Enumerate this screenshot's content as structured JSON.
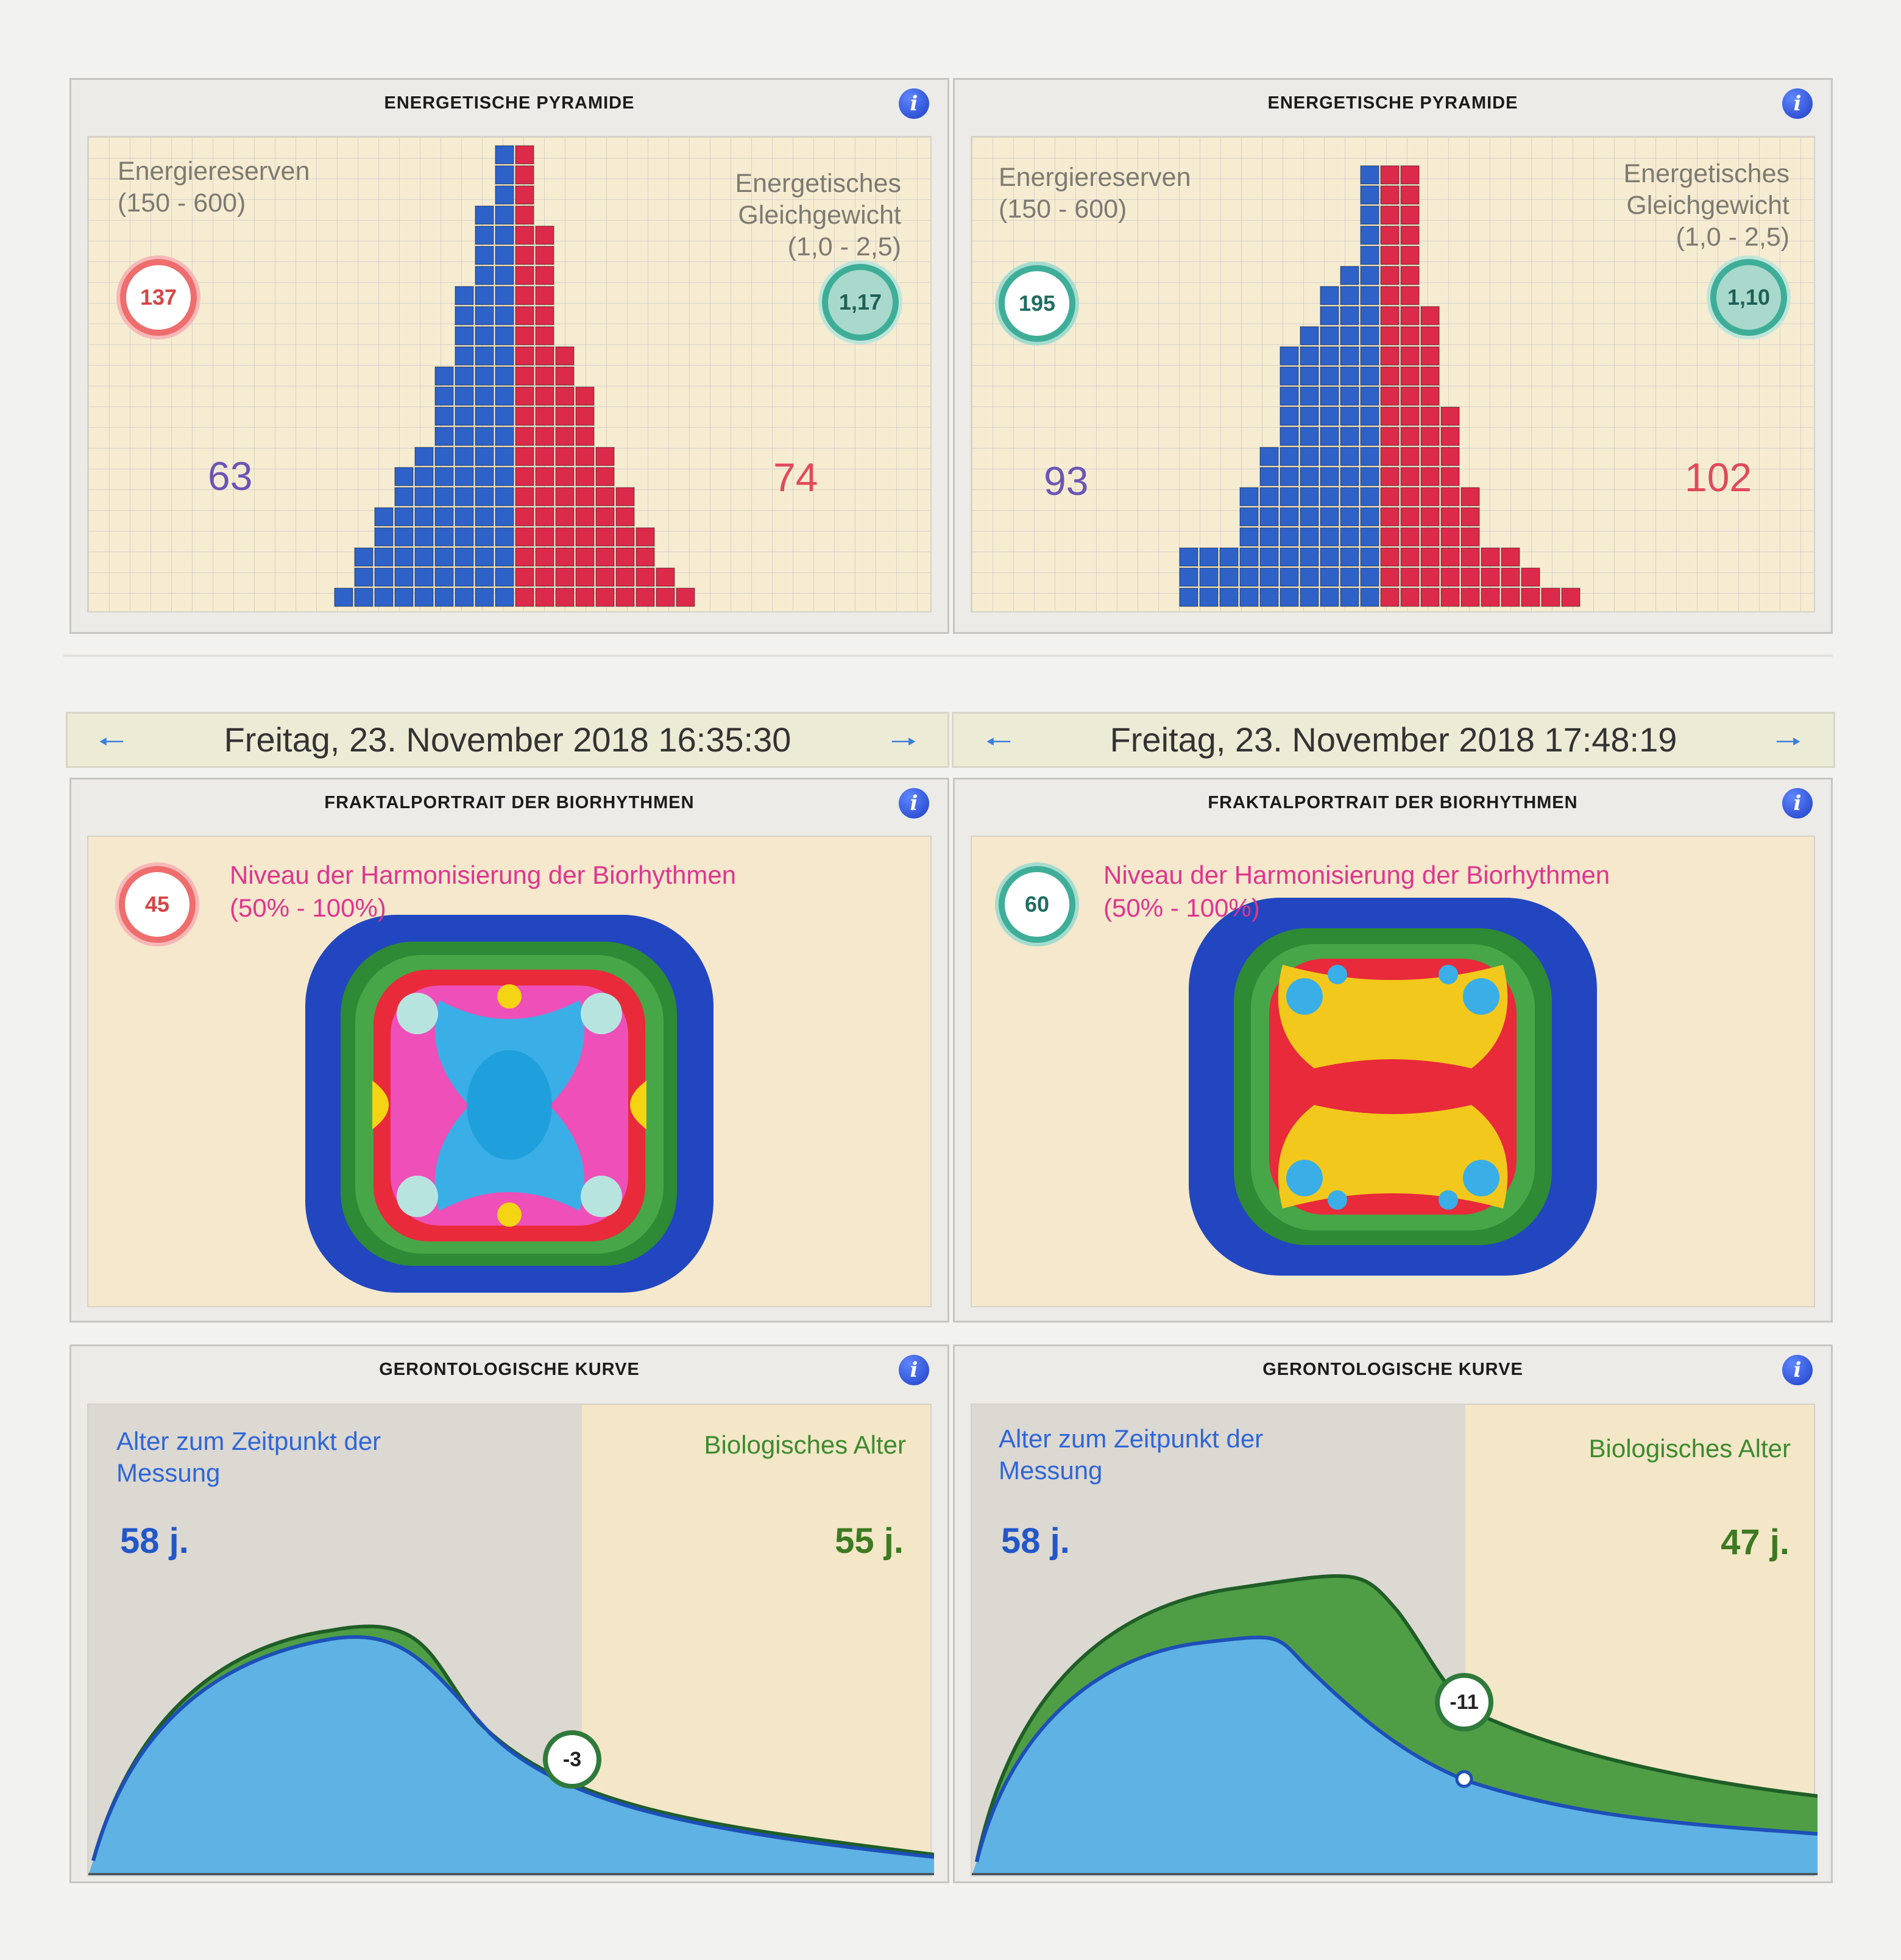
{
  "panels": {
    "pyramid_left": {
      "title": "ENERGETISCHE PYRAMIDE",
      "reserves_label_1": "Energiereserven",
      "reserves_label_2": "(150 - 600)",
      "balance_label_1": "Energetisches",
      "balance_label_2": "Gleichgewicht",
      "balance_label_3": "(1,0 - 2,5)",
      "reserves_value": "137",
      "balance_value": "1,17",
      "left_count": "63",
      "right_count": "74",
      "left_column_heights": [
        1,
        3,
        5,
        7,
        8,
        12,
        16,
        20,
        23
      ],
      "right_column_heights": [
        23,
        19,
        13,
        11,
        8,
        6,
        4,
        2,
        1
      ]
    },
    "pyramid_right": {
      "title": "ENERGETISCHE PYRAMIDE",
      "reserves_label_1": "Energiereserven",
      "reserves_label_2": "(150 - 600)",
      "balance_label_1": "Energetisches",
      "balance_label_2": "Gleichgewicht",
      "balance_label_3": "(1,0 - 2,5)",
      "reserves_value": "195",
      "balance_value": "1,10",
      "left_count": "93",
      "right_count": "102",
      "left_column_heights": [
        3,
        3,
        3,
        6,
        8,
        13,
        14,
        16,
        17,
        22
      ],
      "right_column_heights": [
        22,
        22,
        15,
        10,
        6,
        3,
        3,
        2,
        1,
        1
      ]
    },
    "date_left": "Freitag, 23. November 2018 16:35:30",
    "date_right": "Freitag, 23. November 2018 17:48:19",
    "fractal_left": {
      "title": "FRAKTALPORTRAIT DER BIORHYTHMEN",
      "niveau_label": "Niveau der Harmonisierung der Biorhythmen",
      "niveau_range": "(50% - 100%)",
      "value": "45"
    },
    "fractal_right": {
      "title": "FRAKTALPORTRAIT DER BIORHYTHMEN",
      "niveau_label": "Niveau der Harmonisierung der Biorhythmen",
      "niveau_range": "(50% - 100%)",
      "value": "60"
    },
    "geron_left": {
      "title": "GERONTOLOGISCHE KURVE",
      "age_label_1": "Alter zum Zeitpunkt der",
      "age_label_2": "Messung",
      "bio_label": "Biologisches Alter",
      "age_value": "58 j.",
      "bio_value": "55 j.",
      "diff": "-3"
    },
    "geron_right": {
      "title": "GERONTOLOGISCHE KURVE",
      "age_label_1": "Alter zum Zeitpunkt der",
      "age_label_2": "Messung",
      "bio_label": "Biologisches Alter",
      "age_value": "58 j.",
      "bio_value": "47 j.",
      "diff": "-11"
    }
  },
  "icons": {
    "info": "info-icon",
    "prev": "arrow-left-icon",
    "next": "arrow-right-icon"
  },
  "colors": {
    "blue_bar": "#2e62c8",
    "red_bar": "#dc2a4a",
    "teal": "#3fae98",
    "alert_red": "#ef6d6d"
  }
}
